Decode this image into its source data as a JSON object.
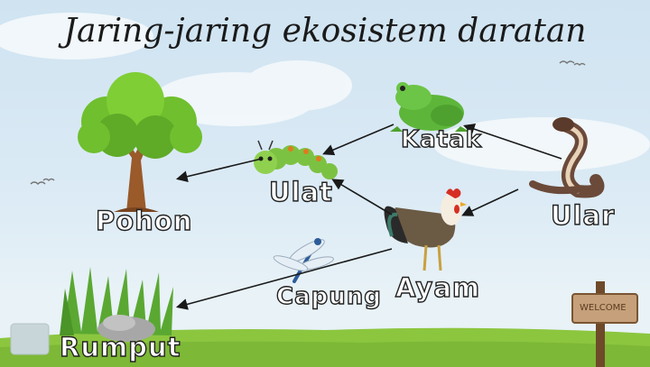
{
  "title": "Jaring-jaring ekosistem daratan",
  "organisms": {
    "pohon": "Pohon",
    "ulat": "Ulat",
    "katak": "Katak",
    "ular": "Ular",
    "ayam": "Ayam",
    "capung": "Capung",
    "rumput": "Rumput"
  },
  "sign": "WELCOME",
  "colors": {
    "sky": "#cfe3f1",
    "grass": "#8cc63f",
    "arrow": "#1a1a1a"
  }
}
